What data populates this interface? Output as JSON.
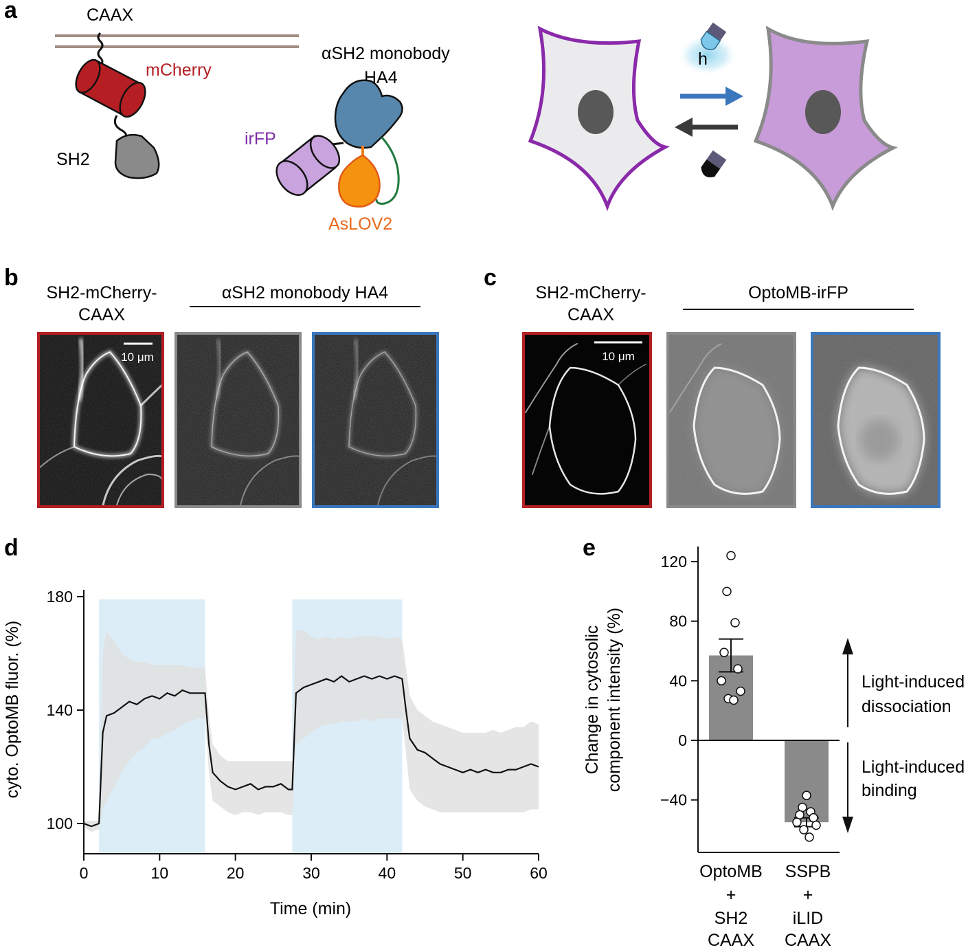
{
  "colors": {
    "mcherry": "#b51f24",
    "irfp": "#7e2da8",
    "aslov2": "#f07f1a",
    "blue": "#3a78bd",
    "gray": "#8a8a8a",
    "light_blue": "#dcedf7",
    "band": "#e0e0e0"
  },
  "panel_a": {
    "label": "a",
    "caax": "CAAX",
    "mcherry": "mCherry",
    "sh2": "SH2",
    "monobody_line1": "αSH2 monobody",
    "monobody_line2": "HA4",
    "irfp": "irFP",
    "aslov2": "AsLOV2",
    "light_symbol": "h"
  },
  "panel_b": {
    "label": "b",
    "title1_line1": "SH2-mCherry-",
    "title1_line2": "CAAX",
    "title2": "αSH2 monobody HA4",
    "scale_bar": "10 μm"
  },
  "panel_c": {
    "label": "c",
    "title1_line1": "SH2-mCherry-",
    "title1_line2": "CAAX",
    "title2": "OptoMB-irFP",
    "scale_bar": "10 μm"
  },
  "panel_d": {
    "label": "d",
    "xlabel": "Time (min)",
    "ylabel": "cyto. OptoMB fluor. (%)"
  },
  "panel_e": {
    "label": "e",
    "ylabel_line1": "Change in cytosolic",
    "ylabel_line2": "component intensity (%)",
    "annot_up_line1": "Light-induced",
    "annot_up_line2": "dissociation",
    "annot_down_line1": "Light-induced",
    "annot_down_line2": "binding",
    "cat1": [
      "OptoMB",
      "+",
      "SH2",
      "CAAX"
    ],
    "cat2": [
      "SSPB",
      "+",
      "iLID",
      "CAAX"
    ]
  },
  "chart_data": [
    {
      "type": "line",
      "panel": "d",
      "xlabel": "Time (min)",
      "ylabel": "cyto. OptoMB fluor. (%)",
      "xlim": [
        0,
        60
      ],
      "ylim": [
        90,
        180
      ],
      "xticks": [
        0,
        10,
        20,
        30,
        40,
        50,
        60
      ],
      "yticks": [
        100,
        140,
        180
      ],
      "light_periods": [
        [
          2,
          16
        ],
        [
          27.5,
          42
        ]
      ],
      "x": [
        0,
        1,
        2,
        2.5,
        3,
        4,
        5,
        6,
        7,
        8,
        9,
        10,
        11,
        12,
        13,
        14,
        15,
        16,
        16.5,
        17,
        18,
        19,
        20,
        21,
        22,
        23,
        24,
        25,
        26,
        27,
        27.5,
        28,
        29,
        30,
        31,
        32,
        33,
        34,
        35,
        36,
        37,
        38,
        39,
        40,
        41,
        42,
        42.5,
        43,
        44,
        45,
        46,
        47,
        48,
        49,
        50,
        51,
        52,
        53,
        54,
        55,
        56,
        57,
        58,
        59,
        60
      ],
      "series": [
        {
          "name": "mean",
          "values": [
            100,
            99,
            100,
            132,
            138,
            139,
            141,
            143,
            142,
            144,
            145,
            144,
            146,
            145,
            147,
            146,
            146,
            146,
            128,
            118,
            115,
            113,
            112,
            113,
            114,
            112,
            113,
            113,
            114,
            112,
            112,
            146,
            148,
            149,
            150,
            151,
            150,
            152,
            150,
            151,
            152,
            151,
            152,
            151,
            152,
            151,
            140,
            130,
            126,
            125,
            123,
            121,
            120,
            119,
            118,
            119,
            118,
            119,
            118,
            118,
            119,
            119,
            120,
            121,
            120
          ]
        },
        {
          "name": "upper",
          "values": [
            101,
            101,
            101,
            160,
            168,
            164,
            160,
            158,
            157,
            157,
            156,
            156,
            156,
            156,
            156,
            155,
            155,
            155,
            138,
            128,
            124,
            122,
            122,
            122,
            122,
            122,
            122,
            122,
            122,
            122,
            122,
            168,
            168,
            166,
            165,
            166,
            165,
            166,
            165,
            166,
            166,
            166,
            166,
            165,
            166,
            165,
            155,
            145,
            140,
            138,
            136,
            135,
            134,
            133,
            132,
            132,
            132,
            132,
            133,
            132,
            133,
            134,
            134,
            136,
            135
          ]
        },
        {
          "name": "lower",
          "values": [
            99,
            97,
            98,
            105,
            108,
            113,
            118,
            122,
            125,
            127,
            130,
            130,
            132,
            133,
            135,
            136,
            137,
            137,
            118,
            108,
            106,
            104,
            103,
            104,
            104,
            103,
            104,
            104,
            104,
            103,
            103,
            128,
            130,
            132,
            134,
            135,
            135,
            136,
            136,
            136,
            137,
            136,
            137,
            137,
            137,
            137,
            125,
            112,
            108,
            106,
            105,
            104,
            104,
            104,
            104,
            104,
            104,
            104,
            104,
            104,
            104,
            104,
            104,
            105,
            105
          ]
        }
      ]
    },
    {
      "type": "bar",
      "panel": "e",
      "ylabel": "Change in cytosolic component intensity (%)",
      "ylim": [
        -70,
        130
      ],
      "yticks": [
        -40,
        0,
        40,
        80,
        120
      ],
      "categories": [
        "OptoMB + SH2 CAAX",
        "SSPB + iLID CAAX"
      ],
      "values": [
        57,
        -55
      ],
      "sem": [
        11,
        3
      ],
      "points": [
        [
          124,
          100,
          79,
          59,
          48,
          40,
          33,
          28,
          27
        ],
        [
          -37,
          -45,
          -48,
          -50,
          -52,
          -55,
          -57,
          -60,
          -65
        ]
      ]
    }
  ]
}
